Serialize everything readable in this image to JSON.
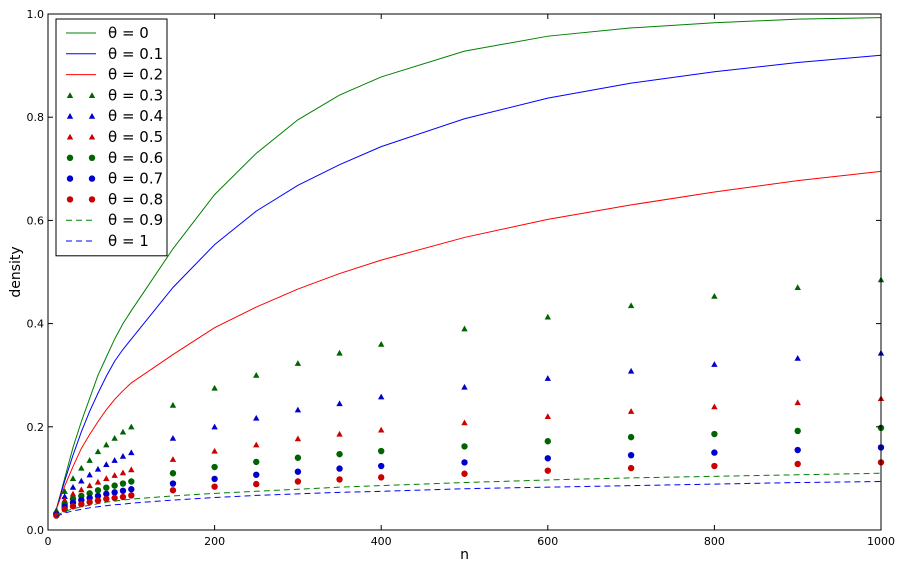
{
  "chart_data": {
    "type": "line",
    "xlabel": "n",
    "ylabel": "density",
    "xlim": [
      0,
      1000
    ],
    "ylim": [
      0.0,
      1.0
    ],
    "x_ticks": [
      "0",
      "200",
      "400",
      "600",
      "800",
      "1000"
    ],
    "y_ticks": [
      "0.0",
      "0.2",
      "0.4",
      "0.6",
      "0.8",
      "1.0"
    ],
    "grid": false,
    "legend_position": "top-left",
    "x": [
      10,
      20,
      30,
      40,
      50,
      60,
      70,
      80,
      90,
      100,
      150,
      200,
      250,
      300,
      350,
      400,
      500,
      600,
      700,
      800,
      900,
      1000
    ],
    "series": [
      {
        "name": "θ = 0",
        "style": "line",
        "color": "#008000",
        "values": [
          0.04,
          0.1,
          0.16,
          0.21,
          0.255,
          0.3,
          0.335,
          0.37,
          0.4,
          0.425,
          0.545,
          0.65,
          0.73,
          0.795,
          0.843,
          0.878,
          0.928,
          0.957,
          0.973,
          0.983,
          0.99,
          0.993
        ]
      },
      {
        "name": "θ = 0.1",
        "style": "line",
        "color": "#0000ff",
        "values": [
          0.04,
          0.095,
          0.145,
          0.19,
          0.23,
          0.265,
          0.298,
          0.327,
          0.35,
          0.37,
          0.47,
          0.553,
          0.618,
          0.668,
          0.708,
          0.743,
          0.797,
          0.837,
          0.866,
          0.888,
          0.906,
          0.92
        ]
      },
      {
        "name": "θ = 0.2",
        "style": "line",
        "color": "#ff0000",
        "values": [
          0.04,
          0.085,
          0.123,
          0.158,
          0.185,
          0.21,
          0.233,
          0.253,
          0.27,
          0.285,
          0.34,
          0.392,
          0.432,
          0.467,
          0.497,
          0.523,
          0.567,
          0.602,
          0.63,
          0.655,
          0.677,
          0.695
        ]
      },
      {
        "name": "θ = 0.3",
        "style": "triangle",
        "color": "#006400",
        "values": [
          0.038,
          0.075,
          0.1,
          0.12,
          0.135,
          0.152,
          0.165,
          0.178,
          0.19,
          0.2,
          0.242,
          0.275,
          0.3,
          0.323,
          0.343,
          0.36,
          0.39,
          0.413,
          0.435,
          0.453,
          0.47,
          0.485
        ]
      },
      {
        "name": "θ = 0.4",
        "style": "triangle",
        "color": "#0000cc",
        "values": [
          0.036,
          0.065,
          0.083,
          0.095,
          0.107,
          0.118,
          0.127,
          0.135,
          0.143,
          0.15,
          0.178,
          0.2,
          0.217,
          0.233,
          0.245,
          0.258,
          0.277,
          0.294,
          0.308,
          0.321,
          0.333,
          0.343
        ]
      },
      {
        "name": "θ = 0.5",
        "style": "triangle",
        "color": "#cc0000",
        "values": [
          0.034,
          0.058,
          0.07,
          0.078,
          0.086,
          0.093,
          0.1,
          0.106,
          0.111,
          0.117,
          0.137,
          0.153,
          0.165,
          0.177,
          0.186,
          0.194,
          0.208,
          0.22,
          0.23,
          0.239,
          0.247,
          0.255
        ]
      },
      {
        "name": "θ = 0.6",
        "style": "circle",
        "color": "#006400",
        "values": [
          0.032,
          0.05,
          0.06,
          0.066,
          0.071,
          0.077,
          0.082,
          0.086,
          0.09,
          0.094,
          0.11,
          0.122,
          0.132,
          0.14,
          0.147,
          0.153,
          0.162,
          0.172,
          0.18,
          0.186,
          0.192,
          0.198
        ]
      },
      {
        "name": "θ = 0.7",
        "style": "circle",
        "color": "#0000cc",
        "values": [
          0.03,
          0.045,
          0.053,
          0.058,
          0.062,
          0.066,
          0.07,
          0.073,
          0.076,
          0.079,
          0.09,
          0.099,
          0.107,
          0.113,
          0.119,
          0.124,
          0.131,
          0.139,
          0.145,
          0.15,
          0.155,
          0.16
        ]
      },
      {
        "name": "θ = 0.8",
        "style": "circle",
        "color": "#cc0000",
        "values": [
          0.028,
          0.04,
          0.046,
          0.05,
          0.054,
          0.057,
          0.06,
          0.062,
          0.064,
          0.067,
          0.077,
          0.084,
          0.089,
          0.094,
          0.098,
          0.102,
          0.109,
          0.115,
          0.12,
          0.124,
          0.128,
          0.131
        ]
      },
      {
        "name": "θ = 0.9",
        "style": "dashed",
        "color": "#008000",
        "values": [
          0.028,
          0.036,
          0.041,
          0.045,
          0.048,
          0.051,
          0.054,
          0.056,
          0.058,
          0.06,
          0.066,
          0.071,
          0.075,
          0.079,
          0.083,
          0.086,
          0.092,
          0.097,
          0.101,
          0.104,
          0.107,
          0.11
        ]
      },
      {
        "name": "θ = 1",
        "style": "dashed",
        "color": "#0000ff",
        "values": [
          0.026,
          0.033,
          0.037,
          0.04,
          0.043,
          0.045,
          0.047,
          0.049,
          0.05,
          0.052,
          0.058,
          0.063,
          0.067,
          0.07,
          0.073,
          0.075,
          0.08,
          0.083,
          0.086,
          0.089,
          0.092,
          0.094
        ]
      }
    ]
  }
}
